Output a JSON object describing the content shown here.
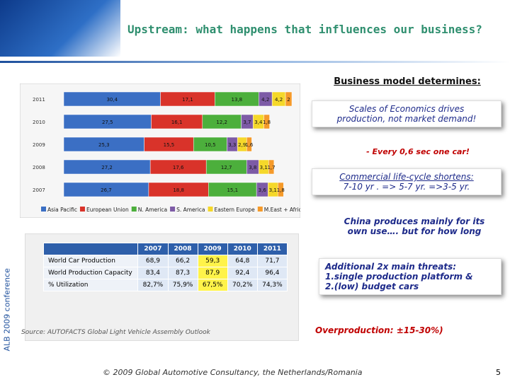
{
  "header": {
    "title": "Upstream: what happens that  influences our business?"
  },
  "side_label": "ALB 2009 conference",
  "chart_data": {
    "type": "bar",
    "orientation": "horizontal",
    "stacked": true,
    "legend": "bottom",
    "categories": [
      "2011",
      "2010",
      "2009",
      "2008",
      "2007"
    ],
    "series": [
      {
        "name": "Asia Pacific",
        "color": "#3b6fc4",
        "values": [
          30.4,
          27.5,
          25.3,
          27.2,
          26.7
        ],
        "value_labels": [
          "30,4",
          "27,5",
          "25,3",
          "27,2",
          "26,7"
        ]
      },
      {
        "name": "European Union",
        "color": "#d9332a",
        "values": [
          17.1,
          16.1,
          15.5,
          17.6,
          18.8
        ],
        "value_labels": [
          "17,1",
          "16,1",
          "15,5",
          "17,6",
          "18,8"
        ]
      },
      {
        "name": "N. America",
        "color": "#4caf3c",
        "values": [
          13.8,
          12.2,
          10.5,
          12.7,
          15.1
        ],
        "value_labels": [
          "13,8",
          "12,2",
          "10,5",
          "12,7",
          "15,1"
        ]
      },
      {
        "name": "S. America",
        "color": "#7d5ba6",
        "values": [
          4.2,
          3.7,
          3.3,
          3.8,
          3.6
        ],
        "value_labels": [
          "4,2",
          "3,7",
          "3,3",
          "3,8",
          "3,6"
        ]
      },
      {
        "name": "Eastern Europe",
        "color": "#f5d82a",
        "values": [
          4.2,
          3.4,
          2.9,
          3.1,
          3.1
        ],
        "value_labels": [
          "4,2",
          "3,4",
          "2,9",
          "3,1",
          "3,1"
        ]
      },
      {
        "name": "M.East + Africa",
        "color": "#f59a2a",
        "values": [
          2,
          1.8,
          1.6,
          1.7,
          1.8
        ],
        "value_labels": [
          "2",
          "1,8",
          "1,6",
          "1,7",
          "1,8"
        ]
      }
    ]
  },
  "notes": {
    "heading": "Business model determines:",
    "scale": [
      "Scales of Economics drives",
      "production, not market demand!"
    ],
    "every": "- Every 0,6 sec one car!",
    "lifecycle": [
      "Commercial life-cycle shortens:",
      "7-10 yr . => 5-7 yr. =>3-5 yr."
    ],
    "china": [
      "China produces mainly for its",
      "own use…. but for how long"
    ],
    "threats": [
      "Additional 2x  main threats:",
      "1.single production platform &",
      "2.(low) budget cars"
    ],
    "overproduction": "Overproduction: ±15-30%)"
  },
  "table": {
    "header": [
      "",
      "2007",
      "2008",
      "2009",
      "2010",
      "2011"
    ],
    "rows": [
      [
        "World  Car Production",
        "68,9",
        "66,2",
        "59,3",
        "64,8",
        "71,7"
      ],
      [
        "World Production Capacity",
        "83,4",
        "87,3",
        "87,9",
        "92,4",
        "96,4"
      ],
      [
        "% Utilization",
        "82,7%",
        "75,9%",
        "67,5%",
        "70,2%",
        "74,3%"
      ]
    ]
  },
  "source": "Source: AUTOFACTS Global Light Vehicle Assembly Outlook",
  "footer": "© 2009 Global Automotive Consultancy, the Netherlands/Romania",
  "page": "5"
}
